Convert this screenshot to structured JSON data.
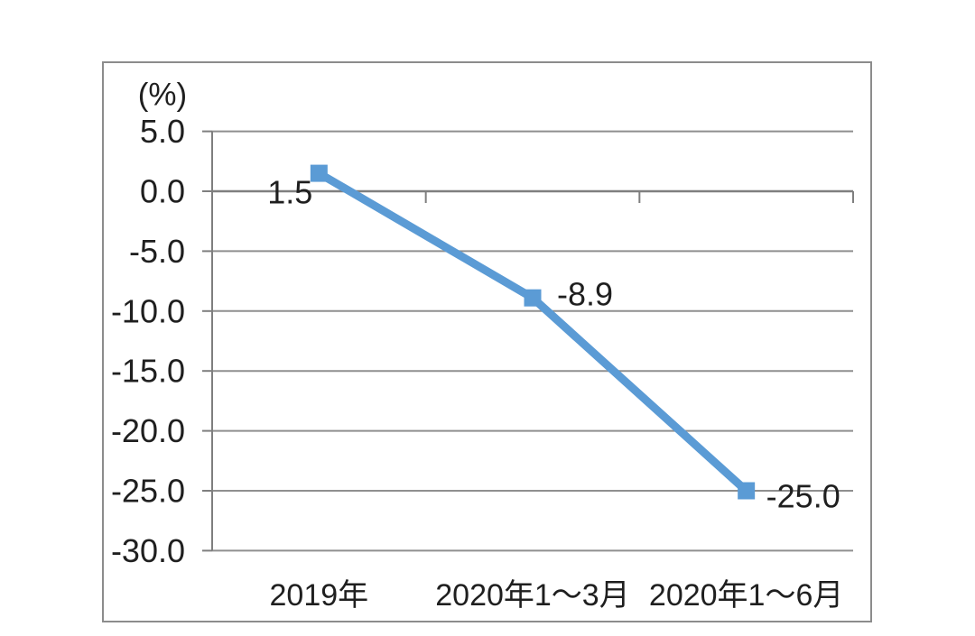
{
  "page": {
    "background": "#ffffff"
  },
  "chart_data": {
    "type": "line",
    "title": "",
    "unit_label": "(%)",
    "categories": [
      "2019年",
      "2020年1～3月",
      "2020年1～6月"
    ],
    "series": [
      {
        "name": "",
        "values": [
          1.5,
          -8.9,
          -25.0
        ],
        "color": "#5B9BD5",
        "marker": "square",
        "data_labels": [
          "1.5",
          "-8.9",
          "-25.0"
        ]
      }
    ],
    "xlabel": "",
    "ylabel": "(%)",
    "ylim": [
      -30,
      5
    ],
    "y_tick_step": 5,
    "y_ticks": [
      {
        "value": 5,
        "label": "5.0"
      },
      {
        "value": 0,
        "label": "0.0"
      },
      {
        "value": -5,
        "label": "-5.0"
      },
      {
        "value": -10,
        "label": "-10.0"
      },
      {
        "value": -15,
        "label": "-15.0"
      },
      {
        "value": -20,
        "label": "-20.0"
      },
      {
        "value": -25,
        "label": "-25.0"
      },
      {
        "value": -30,
        "label": "-30.0"
      }
    ],
    "grid": true,
    "legend_position": "none",
    "colors": {
      "series_line": "#5B9BD5",
      "grid_line": "#8f8f8f",
      "axis_line": "#7f7f7f",
      "text": "#1f1f1f",
      "frame_border": "#8c8c8c",
      "plot_background": "#ffffff"
    }
  }
}
